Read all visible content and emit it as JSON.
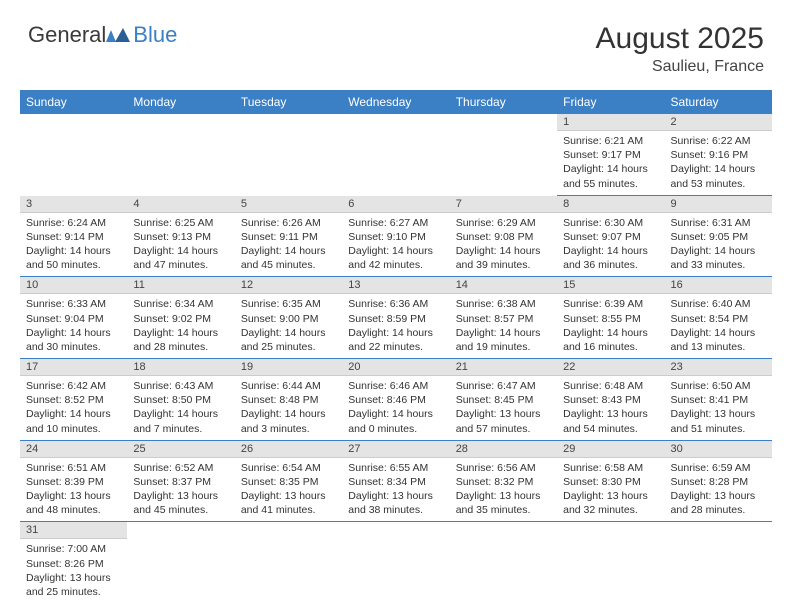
{
  "logo": {
    "text_general": "General",
    "text_blue": "Blue"
  },
  "header": {
    "title": "August 2025",
    "location": "Saulieu, France"
  },
  "colors": {
    "brand_blue": "#3b7fc4",
    "daynum_bg": "#e4e4e4",
    "text": "#333333"
  },
  "weekdays": [
    "Sunday",
    "Monday",
    "Tuesday",
    "Wednesday",
    "Thursday",
    "Friday",
    "Saturday"
  ],
  "weeks": [
    [
      null,
      null,
      null,
      null,
      null,
      {
        "num": "1",
        "sunrise": "Sunrise: 6:21 AM",
        "sunset": "Sunset: 9:17 PM",
        "daylight": "Daylight: 14 hours and 55 minutes."
      },
      {
        "num": "2",
        "sunrise": "Sunrise: 6:22 AM",
        "sunset": "Sunset: 9:16 PM",
        "daylight": "Daylight: 14 hours and 53 minutes."
      }
    ],
    [
      {
        "num": "3",
        "sunrise": "Sunrise: 6:24 AM",
        "sunset": "Sunset: 9:14 PM",
        "daylight": "Daylight: 14 hours and 50 minutes."
      },
      {
        "num": "4",
        "sunrise": "Sunrise: 6:25 AM",
        "sunset": "Sunset: 9:13 PM",
        "daylight": "Daylight: 14 hours and 47 minutes."
      },
      {
        "num": "5",
        "sunrise": "Sunrise: 6:26 AM",
        "sunset": "Sunset: 9:11 PM",
        "daylight": "Daylight: 14 hours and 45 minutes."
      },
      {
        "num": "6",
        "sunrise": "Sunrise: 6:27 AM",
        "sunset": "Sunset: 9:10 PM",
        "daylight": "Daylight: 14 hours and 42 minutes."
      },
      {
        "num": "7",
        "sunrise": "Sunrise: 6:29 AM",
        "sunset": "Sunset: 9:08 PM",
        "daylight": "Daylight: 14 hours and 39 minutes."
      },
      {
        "num": "8",
        "sunrise": "Sunrise: 6:30 AM",
        "sunset": "Sunset: 9:07 PM",
        "daylight": "Daylight: 14 hours and 36 minutes."
      },
      {
        "num": "9",
        "sunrise": "Sunrise: 6:31 AM",
        "sunset": "Sunset: 9:05 PM",
        "daylight": "Daylight: 14 hours and 33 minutes."
      }
    ],
    [
      {
        "num": "10",
        "sunrise": "Sunrise: 6:33 AM",
        "sunset": "Sunset: 9:04 PM",
        "daylight": "Daylight: 14 hours and 30 minutes."
      },
      {
        "num": "11",
        "sunrise": "Sunrise: 6:34 AM",
        "sunset": "Sunset: 9:02 PM",
        "daylight": "Daylight: 14 hours and 28 minutes."
      },
      {
        "num": "12",
        "sunrise": "Sunrise: 6:35 AM",
        "sunset": "Sunset: 9:00 PM",
        "daylight": "Daylight: 14 hours and 25 minutes."
      },
      {
        "num": "13",
        "sunrise": "Sunrise: 6:36 AM",
        "sunset": "Sunset: 8:59 PM",
        "daylight": "Daylight: 14 hours and 22 minutes."
      },
      {
        "num": "14",
        "sunrise": "Sunrise: 6:38 AM",
        "sunset": "Sunset: 8:57 PM",
        "daylight": "Daylight: 14 hours and 19 minutes."
      },
      {
        "num": "15",
        "sunrise": "Sunrise: 6:39 AM",
        "sunset": "Sunset: 8:55 PM",
        "daylight": "Daylight: 14 hours and 16 minutes."
      },
      {
        "num": "16",
        "sunrise": "Sunrise: 6:40 AM",
        "sunset": "Sunset: 8:54 PM",
        "daylight": "Daylight: 14 hours and 13 minutes."
      }
    ],
    [
      {
        "num": "17",
        "sunrise": "Sunrise: 6:42 AM",
        "sunset": "Sunset: 8:52 PM",
        "daylight": "Daylight: 14 hours and 10 minutes."
      },
      {
        "num": "18",
        "sunrise": "Sunrise: 6:43 AM",
        "sunset": "Sunset: 8:50 PM",
        "daylight": "Daylight: 14 hours and 7 minutes."
      },
      {
        "num": "19",
        "sunrise": "Sunrise: 6:44 AM",
        "sunset": "Sunset: 8:48 PM",
        "daylight": "Daylight: 14 hours and 3 minutes."
      },
      {
        "num": "20",
        "sunrise": "Sunrise: 6:46 AM",
        "sunset": "Sunset: 8:46 PM",
        "daylight": "Daylight: 14 hours and 0 minutes."
      },
      {
        "num": "21",
        "sunrise": "Sunrise: 6:47 AM",
        "sunset": "Sunset: 8:45 PM",
        "daylight": "Daylight: 13 hours and 57 minutes."
      },
      {
        "num": "22",
        "sunrise": "Sunrise: 6:48 AM",
        "sunset": "Sunset: 8:43 PM",
        "daylight": "Daylight: 13 hours and 54 minutes."
      },
      {
        "num": "23",
        "sunrise": "Sunrise: 6:50 AM",
        "sunset": "Sunset: 8:41 PM",
        "daylight": "Daylight: 13 hours and 51 minutes."
      }
    ],
    [
      {
        "num": "24",
        "sunrise": "Sunrise: 6:51 AM",
        "sunset": "Sunset: 8:39 PM",
        "daylight": "Daylight: 13 hours and 48 minutes."
      },
      {
        "num": "25",
        "sunrise": "Sunrise: 6:52 AM",
        "sunset": "Sunset: 8:37 PM",
        "daylight": "Daylight: 13 hours and 45 minutes."
      },
      {
        "num": "26",
        "sunrise": "Sunrise: 6:54 AM",
        "sunset": "Sunset: 8:35 PM",
        "daylight": "Daylight: 13 hours and 41 minutes."
      },
      {
        "num": "27",
        "sunrise": "Sunrise: 6:55 AM",
        "sunset": "Sunset: 8:34 PM",
        "daylight": "Daylight: 13 hours and 38 minutes."
      },
      {
        "num": "28",
        "sunrise": "Sunrise: 6:56 AM",
        "sunset": "Sunset: 8:32 PM",
        "daylight": "Daylight: 13 hours and 35 minutes."
      },
      {
        "num": "29",
        "sunrise": "Sunrise: 6:58 AM",
        "sunset": "Sunset: 8:30 PM",
        "daylight": "Daylight: 13 hours and 32 minutes."
      },
      {
        "num": "30",
        "sunrise": "Sunrise: 6:59 AM",
        "sunset": "Sunset: 8:28 PM",
        "daylight": "Daylight: 13 hours and 28 minutes."
      }
    ],
    [
      {
        "num": "31",
        "sunrise": "Sunrise: 7:00 AM",
        "sunset": "Sunset: 8:26 PM",
        "daylight": "Daylight: 13 hours and 25 minutes."
      },
      null,
      null,
      null,
      null,
      null,
      null
    ]
  ]
}
